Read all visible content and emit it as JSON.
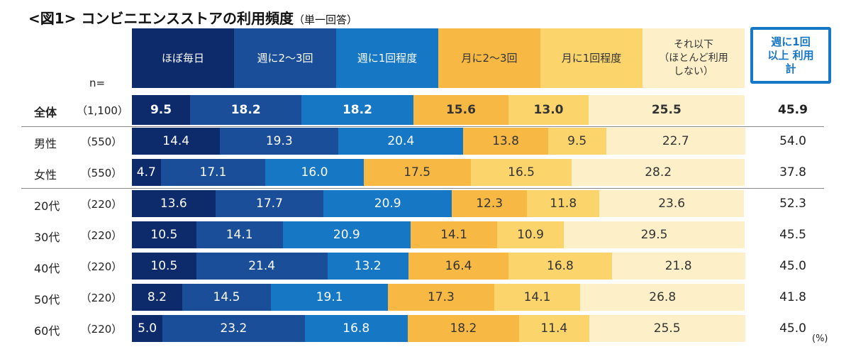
{
  "chart_data": {
    "type": "bar",
    "orientation": "horizontal",
    "stacked": true,
    "title": "<図1> コンビニエンスストアの利用頻度",
    "subtitle": "（単一回答）",
    "n_label": "n=",
    "unit": "(%)",
    "series": [
      {
        "name": "ほぼ毎日",
        "color": "#0d2a6b",
        "text": "#ffffff"
      },
      {
        "name": "週に2〜3回",
        "color": "#1a4e99",
        "text": "#ffffff"
      },
      {
        "name": "週に1回程度",
        "color": "#1677c4",
        "text": "#ffffff"
      },
      {
        "name": "月に2〜3回",
        "color": "#f7b944",
        "text": "#333333"
      },
      {
        "name": "月に1回程度",
        "color": "#fbd46b",
        "text": "#333333"
      },
      {
        "name": "それ以下\n（ほとんど利用\nしない）",
        "color": "#fdf0c8",
        "text": "#333333"
      }
    ],
    "total_header": "週に1回\n以上 利用\n計",
    "rows": [
      {
        "label": "全体",
        "n": "（1,100）",
        "values": [
          9.5,
          18.2,
          18.2,
          15.6,
          13.0,
          25.5
        ],
        "total": 45.9,
        "bold": true
      },
      {
        "label": "男性",
        "n": "（550）",
        "values": [
          14.4,
          19.3,
          20.4,
          13.8,
          9.5,
          22.7
        ],
        "total": 54.0
      },
      {
        "label": "女性",
        "n": "（550）",
        "values": [
          4.7,
          17.1,
          16.0,
          17.5,
          16.5,
          28.2
        ],
        "total": 37.8
      },
      {
        "label": "20代",
        "n": "（220）",
        "values": [
          13.6,
          17.7,
          20.9,
          12.3,
          11.8,
          23.6
        ],
        "total": 52.3
      },
      {
        "label": "30代",
        "n": "（220）",
        "values": [
          10.5,
          14.1,
          20.9,
          14.1,
          10.9,
          29.5
        ],
        "total": 45.5
      },
      {
        "label": "40代",
        "n": "（220）",
        "values": [
          10.5,
          21.4,
          13.2,
          16.4,
          16.8,
          21.8
        ],
        "total": 45.0
      },
      {
        "label": "50代",
        "n": "（220）",
        "values": [
          8.2,
          14.5,
          19.1,
          17.3,
          14.1,
          26.8
        ],
        "total": 41.8
      },
      {
        "label": "60代",
        "n": "（220）",
        "values": [
          5.0,
          23.2,
          16.8,
          18.2,
          11.4,
          25.5
        ],
        "total": 45.0
      }
    ],
    "xlim": [
      0,
      100
    ]
  }
}
